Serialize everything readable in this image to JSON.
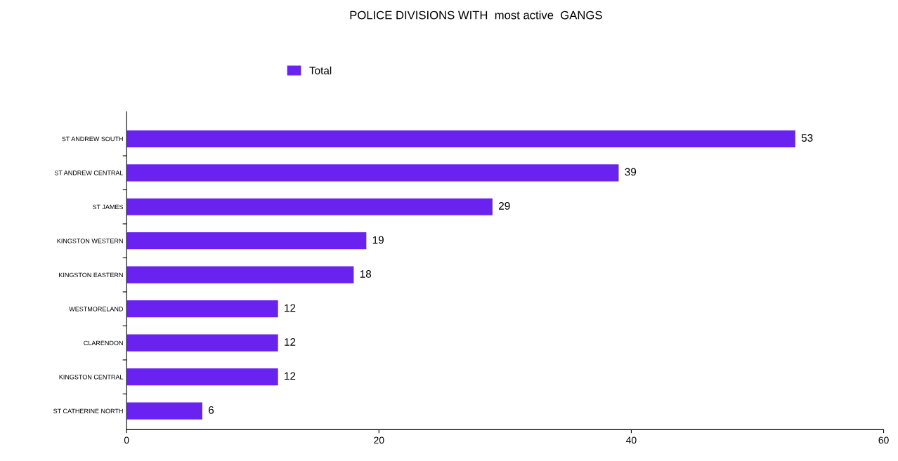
{
  "chart_data": {
    "type": "bar",
    "orientation": "horizontal",
    "title": "POLICE DIVISIONS WITH  most active  GANGS",
    "categories": [
      "ST ANDREW SOUTH",
      "ST ANDREW CENTRAL",
      "ST JAMES",
      "KINGSTON WESTERN",
      "KINGSTON EASTERN",
      "WESTMORELAND",
      "CLARENDON",
      "KINGSTON CENTRAL",
      "ST CATHERINE NORTH"
    ],
    "series": [
      {
        "name": "Total",
        "color": "#6a22f0",
        "values": [
          53,
          39,
          29,
          19,
          18,
          12,
          12,
          12,
          6
        ]
      }
    ],
    "xlim": [
      0,
      60
    ],
    "xticks": [
      0,
      20,
      40,
      60
    ],
    "data_labels": true,
    "legend": "top left",
    "grid": false
  }
}
